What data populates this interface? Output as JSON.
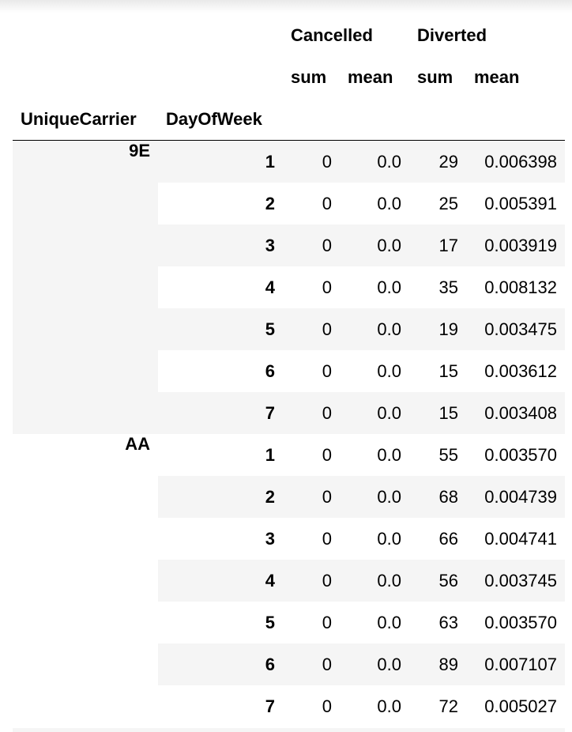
{
  "columns": {
    "cancelled": "Cancelled",
    "diverted": "Diverted",
    "sum": "sum",
    "mean": "mean"
  },
  "index_names": [
    "UniqueCarrier",
    "DayOfWeek"
  ],
  "groups": [
    {
      "carrier": "9E",
      "rows": [
        {
          "day": "1",
          "cancelled_sum": "0",
          "cancelled_mean": "0.0",
          "diverted_sum": "29",
          "diverted_mean": "0.006398"
        },
        {
          "day": "2",
          "cancelled_sum": "0",
          "cancelled_mean": "0.0",
          "diverted_sum": "25",
          "diverted_mean": "0.005391"
        },
        {
          "day": "3",
          "cancelled_sum": "0",
          "cancelled_mean": "0.0",
          "diverted_sum": "17",
          "diverted_mean": "0.003919"
        },
        {
          "day": "4",
          "cancelled_sum": "0",
          "cancelled_mean": "0.0",
          "diverted_sum": "35",
          "diverted_mean": "0.008132"
        },
        {
          "day": "5",
          "cancelled_sum": "0",
          "cancelled_mean": "0.0",
          "diverted_sum": "19",
          "diverted_mean": "0.003475"
        },
        {
          "day": "6",
          "cancelled_sum": "0",
          "cancelled_mean": "0.0",
          "diverted_sum": "15",
          "diverted_mean": "0.003612"
        },
        {
          "day": "7",
          "cancelled_sum": "0",
          "cancelled_mean": "0.0",
          "diverted_sum": "15",
          "diverted_mean": "0.003408"
        }
      ]
    },
    {
      "carrier": "AA",
      "rows": [
        {
          "day": "1",
          "cancelled_sum": "0",
          "cancelled_mean": "0.0",
          "diverted_sum": "55",
          "diverted_mean": "0.003570"
        },
        {
          "day": "2",
          "cancelled_sum": "0",
          "cancelled_mean": "0.0",
          "diverted_sum": "68",
          "diverted_mean": "0.004739"
        },
        {
          "day": "3",
          "cancelled_sum": "0",
          "cancelled_mean": "0.0",
          "diverted_sum": "66",
          "diverted_mean": "0.004741"
        },
        {
          "day": "4",
          "cancelled_sum": "0",
          "cancelled_mean": "0.0",
          "diverted_sum": "56",
          "diverted_mean": "0.003745"
        },
        {
          "day": "5",
          "cancelled_sum": "0",
          "cancelled_mean": "0.0",
          "diverted_sum": "63",
          "diverted_mean": "0.003570"
        },
        {
          "day": "6",
          "cancelled_sum": "0",
          "cancelled_mean": "0.0",
          "diverted_sum": "89",
          "diverted_mean": "0.007107"
        },
        {
          "day": "7",
          "cancelled_sum": "0",
          "cancelled_mean": "0.0",
          "diverted_sum": "72",
          "diverted_mean": "0.005027"
        }
      ]
    }
  ]
}
